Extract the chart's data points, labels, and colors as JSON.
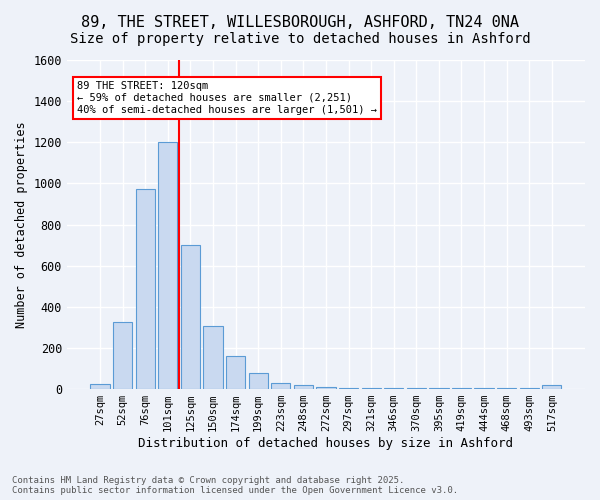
{
  "title1": "89, THE STREET, WILLESBOROUGH, ASHFORD, TN24 0NA",
  "title2": "Size of property relative to detached houses in Ashford",
  "xlabel": "Distribution of detached houses by size in Ashford",
  "ylabel": "Number of detached properties",
  "bar_labels": [
    "27sqm",
    "52sqm",
    "76sqm",
    "101sqm",
    "125sqm",
    "150sqm",
    "174sqm",
    "199sqm",
    "223sqm",
    "248sqm",
    "272sqm",
    "297sqm",
    "321sqm",
    "346sqm",
    "370sqm",
    "395sqm",
    "419sqm",
    "444sqm",
    "468sqm",
    "493sqm",
    "517sqm"
  ],
  "bar_values": [
    25,
    325,
    975,
    1200,
    700,
    305,
    160,
    80,
    30,
    18,
    12,
    5,
    4,
    4,
    4,
    4,
    4,
    4,
    4,
    4,
    20
  ],
  "bar_color": "#c9d9f0",
  "bar_edgecolor": "#5b9bd5",
  "vline_x": 3.5,
  "vline_color": "red",
  "annotation_text": "89 THE STREET: 120sqm\n← 59% of detached houses are smaller (2,251)\n40% of semi-detached houses are larger (1,501) →",
  "annotation_box_color": "white",
  "annotation_box_edgecolor": "red",
  "ylim": [
    0,
    1600
  ],
  "yticks": [
    0,
    200,
    400,
    600,
    800,
    1000,
    1200,
    1400,
    1600
  ],
  "footnote": "Contains HM Land Registry data © Crown copyright and database right 2025.\nContains public sector information licensed under the Open Government Licence v3.0.",
  "bg_color": "#eef2f9",
  "grid_color": "white",
  "title_fontsize": 11,
  "subtitle_fontsize": 10
}
